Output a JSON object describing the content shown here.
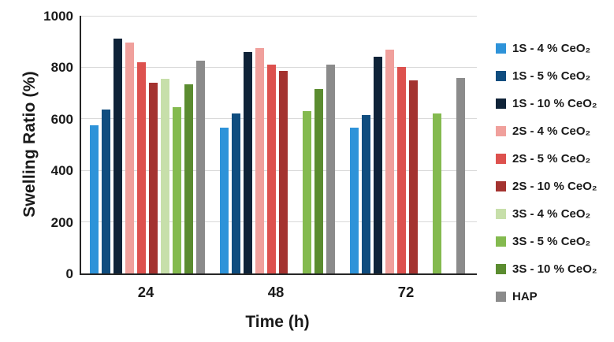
{
  "chart_data": {
    "type": "bar",
    "title": "",
    "xlabel": "Time (h)",
    "ylabel": "Swelling Ratio (%)",
    "ylim": [
      0,
      1000
    ],
    "yticks": [
      0,
      200,
      400,
      600,
      800,
      1000
    ],
    "grid": "horizontal",
    "legend_position": "right",
    "categories": [
      "24",
      "48",
      "72"
    ],
    "series": [
      {
        "name": "1S - 4 % CeO₂",
        "color": "#2e93d9",
        "values": [
          575,
          565,
          565
        ]
      },
      {
        "name": "1S - 5 % CeO₂",
        "color": "#104d7f",
        "values": [
          635,
          620,
          615
        ]
      },
      {
        "name": "1S - 10 % CeO₂",
        "color": "#0f2338",
        "values": [
          910,
          860,
          840
        ]
      },
      {
        "name": "2S - 4 % CeO₂",
        "color": "#f0a09c",
        "values": [
          895,
          875,
          870
        ]
      },
      {
        "name": "2S - 5 % CeO₂",
        "color": "#dd514e",
        "values": [
          820,
          810,
          800
        ]
      },
      {
        "name": "2S - 10 % CeO₂",
        "color": "#a43330",
        "values": [
          740,
          785,
          750
        ]
      },
      {
        "name": "3S - 4 % CeO₂",
        "color": "#c7dfaa",
        "values": [
          755,
          null,
          null
        ]
      },
      {
        "name": "3S - 5 % CeO₂",
        "color": "#84ba4f",
        "values": [
          645,
          630,
          620
        ]
      },
      {
        "name": "3S - 10 % CeO₂",
        "color": "#5b8c30",
        "values": [
          735,
          715,
          null
        ]
      },
      {
        "name": "HAP",
        "color": "#8b8b8b",
        "values": [
          825,
          810,
          760
        ]
      }
    ],
    "colors": {
      "gridline": "#d9d9d9",
      "axis": "#262626",
      "text": "#1a1a1a",
      "background": "#ffffff"
    }
  }
}
